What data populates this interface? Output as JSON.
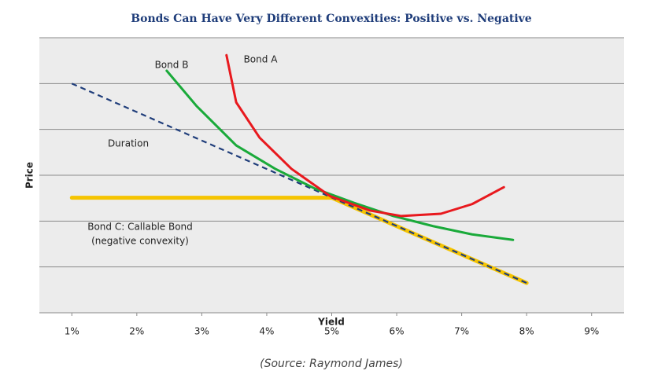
{
  "chart_data": {
    "type": "line",
    "title": "Bonds Can Have Very Different Convexities: Positive vs. Negative",
    "x_label": "Yield",
    "y_label": "Price",
    "source": "(Source: Raymond James)",
    "annotations": [
      "(negative convexity)"
    ],
    "xlim": [
      0.5,
      9.5
    ],
    "xticks": [
      {
        "value": 1,
        "label": "1%"
      },
      {
        "value": 2,
        "label": "2%"
      },
      {
        "value": 3,
        "label": "3%"
      },
      {
        "value": 4,
        "label": "4%"
      },
      {
        "value": 5,
        "label": "5%"
      },
      {
        "value": 6,
        "label": "6%"
      },
      {
        "value": 7,
        "label": "7%"
      },
      {
        "value": 8,
        "label": "8%"
      },
      {
        "value": 9,
        "label": "9%"
      }
    ],
    "ylim": [
      0,
      6
    ],
    "ygrid": [
      1,
      2,
      3,
      4,
      5,
      6
    ],
    "series": [
      {
        "name": "Bond C: Callable Bond",
        "color": "#f5c400",
        "style": "solid",
        "x": [
          1,
          5,
          8
        ],
        "values": [
          2.51,
          2.51,
          0.65
        ]
      },
      {
        "name": "Duration",
        "color": "#1f3d7a",
        "style": "dashed",
        "x": [
          1,
          8
        ],
        "values": [
          5.0,
          0.65
        ]
      },
      {
        "name": "Bond B",
        "color": "#1aaa3a",
        "style": "solid",
        "x": [
          2.46,
          2.92,
          3.53,
          4.13,
          4.74,
          5.34,
          5.95,
          6.56,
          7.16,
          7.79
        ],
        "values": [
          5.28,
          4.51,
          3.65,
          3.14,
          2.71,
          2.4,
          2.11,
          1.89,
          1.71,
          1.59
        ]
      },
      {
        "name": "Bond A",
        "color": "#e8191e",
        "style": "solid",
        "x": [
          3.38,
          3.53,
          3.89,
          4.38,
          4.98,
          5.59,
          6.07,
          6.68,
          7.16,
          7.65
        ],
        "values": [
          5.62,
          4.59,
          3.82,
          3.14,
          2.54,
          2.23,
          2.11,
          2.16,
          2.37,
          2.74
        ]
      }
    ]
  }
}
